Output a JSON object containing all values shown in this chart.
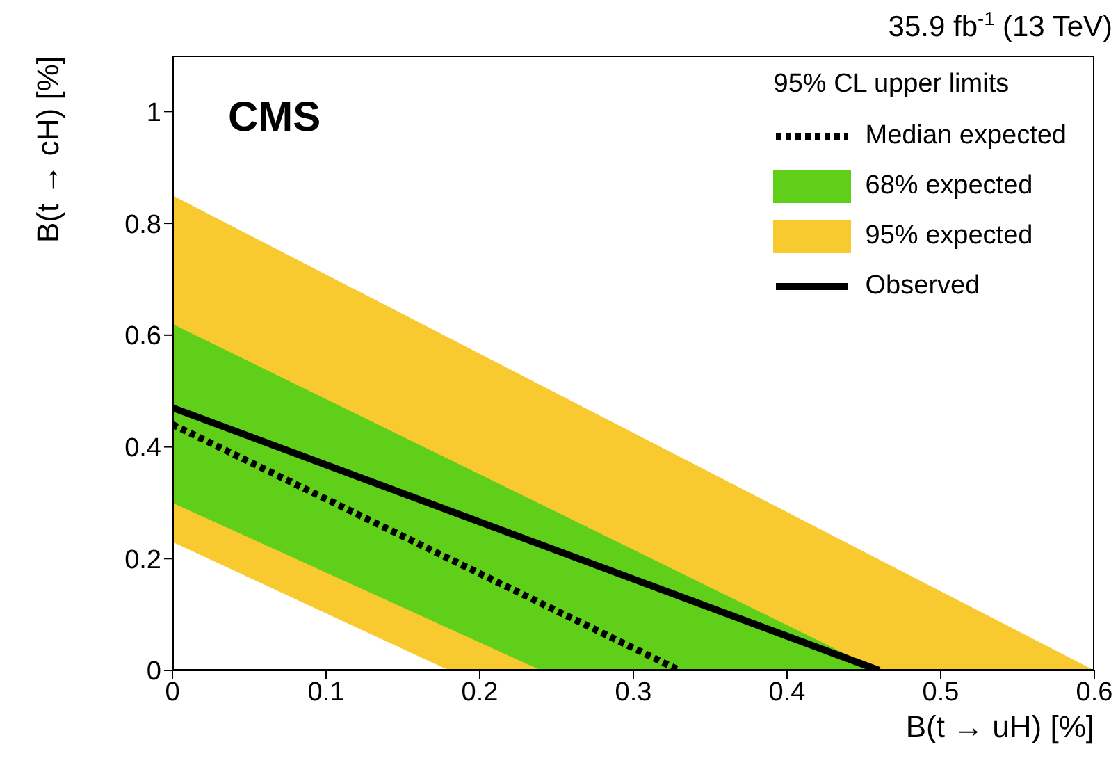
{
  "chart_data": {
    "type": "line",
    "xlabel": "B(t → uH) [%]",
    "ylabel": "B(t → cH) [%]",
    "legend_title": "95% CL upper limits",
    "annotations": [
      "CMS",
      "35.9 fb$^{-1}$ (13 TeV)"
    ],
    "xlim": [
      0,
      0.6
    ],
    "xticks": [
      0,
      0.1,
      0.2,
      0.3,
      0.4,
      0.5,
      0.6
    ],
    "ylim": [
      0,
      1.1
    ],
    "yticks": [
      0,
      0.2,
      0.4,
      0.6,
      0.8,
      1
    ],
    "grid": false,
    "legend": "top right",
    "series": [
      {
        "name": "Median expected",
        "line_style": "dotted",
        "color": "#000000",
        "x": [
          0,
          0.33
        ],
        "values": [
          0.44,
          0
        ]
      },
      {
        "name": "68% expected",
        "color": "#5fcf1a",
        "x": [
          0,
          0.24,
          0.46
        ],
        "lower": [
          0.3,
          0,
          0
        ],
        "upper": [
          0.62,
          0.297,
          0
        ],
        "values": [
          null,
          null,
          null
        ]
      },
      {
        "name": "95% expected",
        "color": "#f9c930",
        "x": [
          0,
          0.18,
          0.6
        ],
        "lower": [
          0.23,
          0,
          0
        ],
        "upper": [
          0.85,
          0.595,
          0
        ],
        "values": [
          null,
          null,
          null
        ]
      },
      {
        "name": "Observed",
        "line_style": "solid",
        "color": "#000000",
        "x": [
          0,
          0.46
        ],
        "values": [
          0.47,
          0
        ]
      }
    ]
  }
}
